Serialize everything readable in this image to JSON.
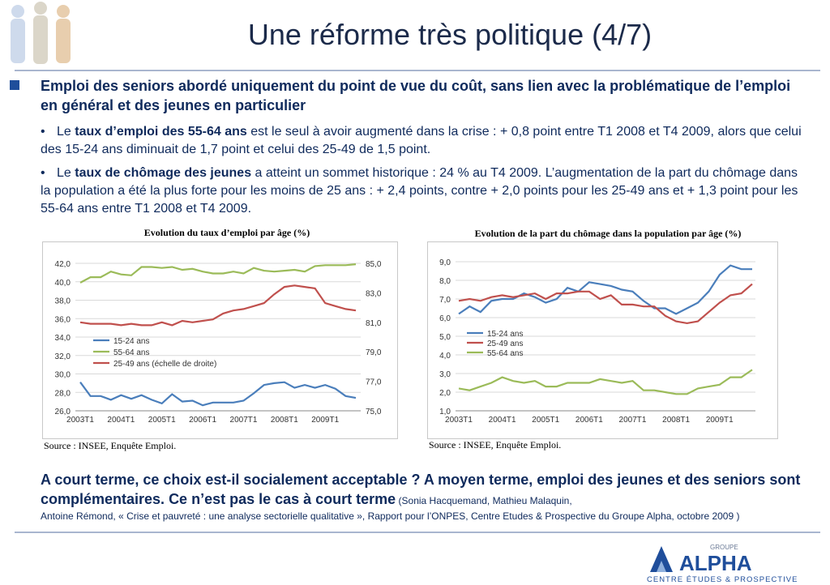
{
  "slide": {
    "title": "Une réforme très politique (4/7)",
    "main_bullet": "Emploi des seniors abordé uniquement du point de vue du coût, sans lien avec la problématique de l’emploi en général et des jeunes en particulier",
    "sub1_pre": "Le ",
    "sub1_bold": "taux d’emploi des 55-64 ans",
    "sub1_post": " est le seul à avoir augmenté dans la crise : + 0,8 point entre T1 2008 et T4 2009, alors que celui des 15-24 ans diminuait de 1,7 point et celui des 25-49 de 1,5 point.",
    "sub2_pre": "Le ",
    "sub2_bold": "taux de chômage des jeunes",
    "sub2_post": " a atteint un sommet historique : 24 % au T4 2009. L’augmentation de la part du chômage dans la population a été la plus forte pour les moins de 25 ans : + 2,4 points, contre + 2,0 points pour les 25-49 ans et + 1,3 point pour les 55-64 ans entre T1 2008 et T4 2009.",
    "conclusion_bold": "A court terme, ce choix est-il socialement acceptable ? A moyen terme, emploi des jeunes et des seniors sont complémentaires. Ce n’est pas le cas à court terme",
    "conclusion_ref": " (Sonia Hacquemand, Mathieu Malaquin,",
    "conclusion_ref2": "Antoine Rémond, « Crise et pauvreté : une analyse sectorielle qualitative », Rapport pour l’ONPES, Centre Etudes & Prospective du Groupe Alpha, octobre 2009 )",
    "logo_small": "GROUPE",
    "logo_big": "ALPHA",
    "logo_tag": "CENTRE ÉTUDES & PROSPECTIVE"
  },
  "colors": {
    "blue": "#4a7ebb",
    "green": "#9bbb59",
    "red": "#c0504d",
    "title": "#1b2a4a",
    "text": "#0f2a5c"
  },
  "chart_data": [
    {
      "type": "line",
      "title": "Evolution du taux d’emploi par âge (%)",
      "source": "Source : INSEE, Enquête Emploi.",
      "x_ticks": [
        "2003T1",
        "2004T1",
        "2005T1",
        "2006T1",
        "2007T1",
        "2008T1",
        "2009T1"
      ],
      "x": [
        "2003T1",
        "2003T2",
        "2003T3",
        "2003T4",
        "2004T1",
        "2004T2",
        "2004T3",
        "2004T4",
        "2005T1",
        "2005T2",
        "2005T3",
        "2005T4",
        "2006T1",
        "2006T2",
        "2006T3",
        "2006T4",
        "2007T1",
        "2007T2",
        "2007T3",
        "2007T4",
        "2008T1",
        "2008T2",
        "2008T3",
        "2008T4",
        "2009T1",
        "2009T2",
        "2009T3",
        "2009T4"
      ],
      "y_ticks_left": [
        "26,0",
        "28,0",
        "30,0",
        "32,0",
        "34,0",
        "36,0",
        "38,0",
        "40,0",
        "42,0"
      ],
      "y_ticks_right": [
        "75,0",
        "77,0",
        "79,0",
        "81,0",
        "83,0",
        "85,0"
      ],
      "ylim_left": [
        26,
        42
      ],
      "ylim_right": [
        75,
        85
      ],
      "legend": "inside-lower-left",
      "series": [
        {
          "name": "15-24 ans",
          "axis": "left",
          "color": "#4a7ebb",
          "values": [
            29.1,
            27.6,
            27.6,
            27.2,
            27.7,
            27.3,
            27.7,
            27.2,
            26.8,
            27.8,
            27.0,
            27.1,
            26.6,
            26.9,
            26.9,
            26.9,
            27.1,
            27.9,
            28.8,
            29.0,
            29.1,
            28.5,
            28.8,
            28.5,
            28.8,
            28.4,
            27.6,
            27.4
          ]
        },
        {
          "name": "55-64 ans",
          "axis": "left",
          "color": "#9bbb59",
          "values": [
            39.9,
            40.5,
            40.5,
            41.1,
            40.8,
            40.7,
            41.6,
            41.6,
            41.5,
            41.6,
            41.3,
            41.4,
            41.1,
            40.9,
            40.9,
            41.1,
            40.9,
            41.5,
            41.2,
            41.1,
            41.2,
            41.3,
            41.1,
            41.7,
            41.8,
            41.8,
            41.8,
            41.9
          ]
        },
        {
          "name": "25-49 ans (échelle de droite)",
          "axis": "right",
          "color": "#c0504d",
          "values": [
            81.0,
            80.9,
            80.9,
            80.9,
            80.8,
            80.9,
            80.8,
            80.8,
            81.0,
            80.8,
            81.1,
            81.0,
            81.1,
            81.2,
            81.6,
            81.8,
            81.9,
            82.1,
            82.3,
            82.9,
            83.4,
            83.5,
            83.4,
            83.3,
            82.3,
            82.1,
            81.9,
            81.8
          ]
        }
      ]
    },
    {
      "type": "line",
      "title": "Evolution de la part du chômage dans la population par âge (%)",
      "source": "Source : INSEE, Enquête Emploi.",
      "x_ticks": [
        "2003T1",
        "2004T1",
        "2005T1",
        "2006T1",
        "2007T1",
        "2008T1",
        "2009T1"
      ],
      "x": [
        "2003T1",
        "2003T2",
        "2003T3",
        "2003T4",
        "2004T1",
        "2004T2",
        "2004T3",
        "2004T4",
        "2005T1",
        "2005T2",
        "2005T3",
        "2005T4",
        "2006T1",
        "2006T2",
        "2006T3",
        "2006T4",
        "2007T1",
        "2007T2",
        "2007T3",
        "2007T4",
        "2008T1",
        "2008T2",
        "2008T3",
        "2008T4",
        "2009T1",
        "2009T2",
        "2009T3",
        "2009T4"
      ],
      "y_ticks": [
        "1,0",
        "2,0",
        "3,0",
        "4,0",
        "5,0",
        "6,0",
        "7,0",
        "8,0",
        "9,0"
      ],
      "ylim": [
        1,
        9
      ],
      "legend": "inside-left",
      "series": [
        {
          "name": "15-24 ans",
          "color": "#4a7ebb",
          "values": [
            6.2,
            6.6,
            6.3,
            6.9,
            7.0,
            7.0,
            7.3,
            7.1,
            6.8,
            7.0,
            7.6,
            7.4,
            7.9,
            7.8,
            7.7,
            7.5,
            7.4,
            6.9,
            6.5,
            6.5,
            6.2,
            6.5,
            6.8,
            7.4,
            8.3,
            8.8,
            8.6,
            8.6
          ]
        },
        {
          "name": "25-49 ans",
          "color": "#c0504d",
          "values": [
            6.9,
            7.0,
            6.9,
            7.1,
            7.2,
            7.1,
            7.2,
            7.3,
            7.0,
            7.3,
            7.3,
            7.4,
            7.4,
            7.0,
            7.2,
            6.7,
            6.7,
            6.6,
            6.6,
            6.1,
            5.8,
            5.7,
            5.8,
            6.3,
            6.8,
            7.2,
            7.3,
            7.8
          ]
        },
        {
          "name": "55-64 ans",
          "color": "#9bbb59",
          "values": [
            2.2,
            2.1,
            2.3,
            2.5,
            2.8,
            2.6,
            2.5,
            2.6,
            2.3,
            2.3,
            2.5,
            2.5,
            2.5,
            2.7,
            2.6,
            2.5,
            2.6,
            2.1,
            2.1,
            2.0,
            1.9,
            1.9,
            2.2,
            2.3,
            2.4,
            2.8,
            2.8,
            3.2
          ]
        }
      ]
    }
  ]
}
